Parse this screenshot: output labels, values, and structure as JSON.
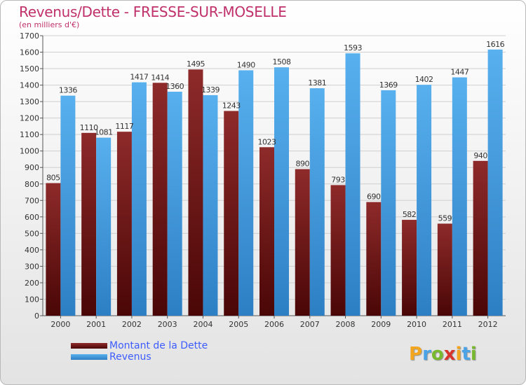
{
  "title": "Revenus/Dette - FRESSE-SUR-MOSELLE",
  "subtitle": "(en milliers d'€)",
  "chart_data": {
    "type": "bar",
    "categories": [
      "2000",
      "2001",
      "2002",
      "2003",
      "2004",
      "2005",
      "2006",
      "2007",
      "2008",
      "2009",
      "2010",
      "2011",
      "2012"
    ],
    "series": [
      {
        "name": "Montant de la Dette",
        "color": "#8b1a1a",
        "values": [
          805,
          1110,
          1117,
          1414,
          1495,
          1243,
          1023,
          890,
          793,
          690,
          582,
          559,
          940
        ],
        "labels": [
          "805",
          "1110",
          "1117",
          "1414",
          "1495",
          "1243",
          "1023",
          "890",
          "793",
          "690",
          "582",
          "559",
          "940"
        ]
      },
      {
        "name": "Revenus",
        "color": "#4aa3e6",
        "values": [
          1336,
          1081,
          1417,
          1360,
          1339,
          1490,
          1508,
          1381,
          1593,
          1369,
          1402,
          1447,
          1616
        ],
        "labels": [
          "1336",
          "1081",
          "1417",
          "1360",
          "1339",
          "1490",
          "1508",
          "1381",
          "1593",
          "1369",
          "1402",
          "1447",
          "1616"
        ]
      }
    ],
    "ylim": [
      0,
      1700
    ],
    "yticks": [
      0,
      100,
      200,
      300,
      400,
      500,
      600,
      700,
      800,
      900,
      1000,
      1100,
      1200,
      1300,
      1400,
      1500,
      1600,
      1700
    ],
    "grid": true,
    "legend_position": "bottom-left"
  },
  "legend": {
    "debt_label": "Montant de la Dette",
    "revenue_label": "Revenus"
  },
  "logo": {
    "letters": [
      "P",
      "r",
      "o",
      "x",
      "i",
      "t",
      "i"
    ],
    "colors": [
      "#f2a51d",
      "#4aa3e6",
      "#78b92f",
      "#d9342b",
      "#f2a51d",
      "#4aa3e6",
      "#78b92f"
    ]
  }
}
